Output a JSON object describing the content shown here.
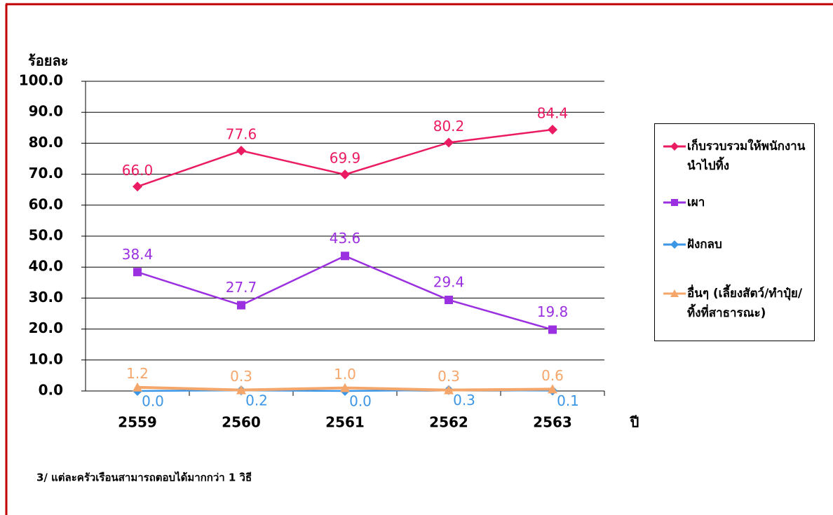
{
  "chart_data": {
    "type": "line",
    "y_label": "ร้อยละ",
    "x_label": "ปี",
    "categories": [
      "2559",
      "2560",
      "2561",
      "2562",
      "2563"
    ],
    "series": [
      {
        "name": "เก็บรวบรวมให้พนักงานนำไปทิ้ง",
        "color": "#ea1a63",
        "marker": "diamond",
        "values": [
          66.0,
          77.6,
          69.9,
          80.2,
          84.4
        ],
        "value_labels": [
          "66.0",
          "77.6",
          "69.9",
          "80.2",
          "84.4"
        ]
      },
      {
        "name": "เผา",
        "color": "#9b30e0",
        "marker": "square",
        "values": [
          38.4,
          27.7,
          43.6,
          29.4,
          19.8
        ],
        "value_labels": [
          "38.4",
          "27.7",
          "43.6",
          "29.4",
          "19.8"
        ]
      },
      {
        "name": "ฝังกลบ",
        "color": "#3c96e6",
        "marker": "diamond",
        "values": [
          0.0,
          0.2,
          0.0,
          0.3,
          0.1
        ],
        "value_labels": [
          "0.0",
          "0.2",
          "0.0",
          "0.3",
          "0.1"
        ]
      },
      {
        "name": "อื่นๆ (เลี้ยงสัตว์/ทำปุ๋ย/ทิ้งที่สาธารณะ)",
        "color": "#f5a66a",
        "marker": "triangle",
        "values": [
          1.2,
          0.3,
          1.0,
          0.3,
          0.6
        ],
        "value_labels": [
          "1.2",
          "0.3",
          "1.0",
          "0.3",
          "0.6"
        ]
      }
    ],
    "ylim": [
      0,
      100
    ],
    "yticks": [
      {
        "value": 0,
        "label": "0.0"
      },
      {
        "value": 10,
        "label": "10.0"
      },
      {
        "value": 20,
        "label": "20.0"
      },
      {
        "value": 30,
        "label": "30.0"
      },
      {
        "value": 40,
        "label": "40.0"
      },
      {
        "value": 50,
        "label": "50.0"
      },
      {
        "value": 60,
        "label": "60.0"
      },
      {
        "value": 70,
        "label": "70.0"
      },
      {
        "value": 80,
        "label": "80.0"
      },
      {
        "value": 90,
        "label": "90.0"
      },
      {
        "value": 100,
        "label": "100.0"
      }
    ],
    "grid": true,
    "legend": "right",
    "footnote": "3/ แต่ละครัวเรือนสามารถตอบได้มากกว่า 1 วิธี"
  }
}
